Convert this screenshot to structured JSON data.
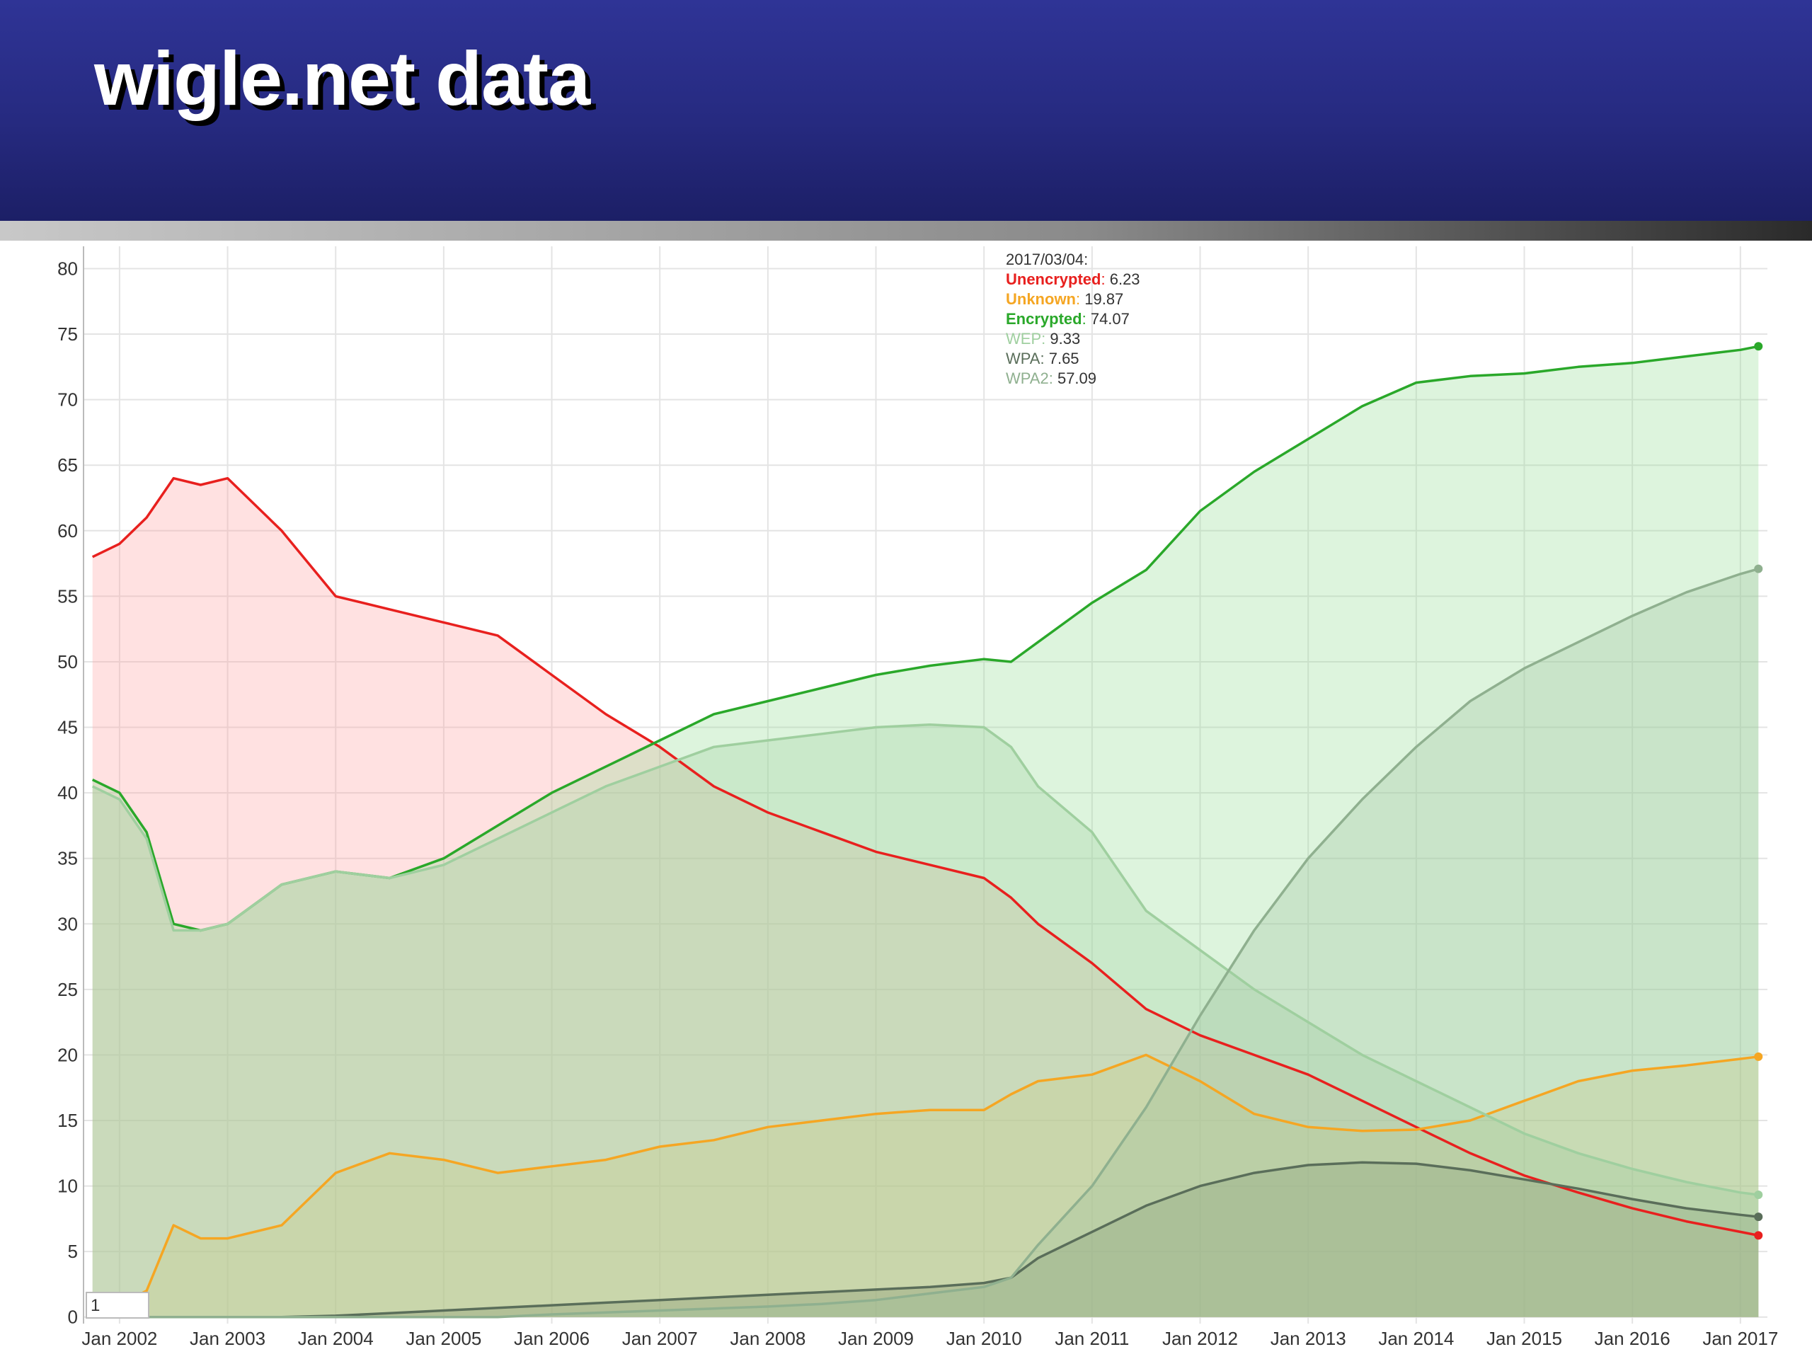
{
  "title": "wigle.net data",
  "range_input": "1",
  "chart_data": {
    "type": "line",
    "tooltip_date": "2017/03/04:",
    "x": [
      "2001-10",
      "2002-01",
      "2002-04",
      "2002-07",
      "2002-10",
      "2003-01",
      "2003-07",
      "2004-01",
      "2004-07",
      "2005-01",
      "2005-07",
      "2006-01",
      "2006-07",
      "2007-01",
      "2007-07",
      "2008-01",
      "2008-07",
      "2009-01",
      "2009-07",
      "2010-01",
      "2010-04",
      "2010-07",
      "2011-01",
      "2011-07",
      "2012-01",
      "2012-07",
      "2013-01",
      "2013-07",
      "2014-01",
      "2014-07",
      "2015-01",
      "2015-07",
      "2016-01",
      "2016-07",
      "2017-01",
      "2017-03"
    ],
    "xlim": [
      "2001-09",
      "2017-04"
    ],
    "xticks": [
      {
        "value": "2002-01",
        "label": "Jan 2002"
      },
      {
        "value": "2003-01",
        "label": "Jan 2003"
      },
      {
        "value": "2004-01",
        "label": "Jan 2004"
      },
      {
        "value": "2005-01",
        "label": "Jan 2005"
      },
      {
        "value": "2006-01",
        "label": "Jan 2006"
      },
      {
        "value": "2007-01",
        "label": "Jan 2007"
      },
      {
        "value": "2008-01",
        "label": "Jan 2008"
      },
      {
        "value": "2009-01",
        "label": "Jan 2009"
      },
      {
        "value": "2010-01",
        "label": "Jan 2010"
      },
      {
        "value": "2011-01",
        "label": "Jan 2011"
      },
      {
        "value": "2012-01",
        "label": "Jan 2012"
      },
      {
        "value": "2013-01",
        "label": "Jan 2013"
      },
      {
        "value": "2014-01",
        "label": "Jan 2014"
      },
      {
        "value": "2015-01",
        "label": "Jan 2015"
      },
      {
        "value": "2016-01",
        "label": "Jan 2016"
      },
      {
        "value": "2017-01",
        "label": "Jan 2017"
      }
    ],
    "ylim": [
      -0.5,
      81.7
    ],
    "yticks": [
      0,
      5,
      10,
      15,
      20,
      25,
      30,
      35,
      40,
      45,
      50,
      55,
      60,
      65,
      70,
      75,
      80
    ],
    "grid": true,
    "area": true,
    "series": [
      {
        "name": "Unencrypted",
        "color": "#e8201e",
        "fill": "#ff9a9a",
        "values": [
          58,
          59,
          61,
          64,
          63.5,
          64,
          60,
          55,
          54,
          53,
          52,
          49,
          46,
          43.5,
          40.5,
          38.5,
          37,
          35.5,
          34.5,
          33.5,
          32,
          30,
          27,
          23.5,
          21.5,
          20,
          18.5,
          16.5,
          14.5,
          12.5,
          10.8,
          9.5,
          8.3,
          7.3,
          6.5,
          6.23
        ]
      },
      {
        "name": "Unknown",
        "color": "#f5a623",
        "fill": "#f5c070",
        "values": [
          0.5,
          1,
          2,
          7,
          6,
          6,
          7,
          11,
          12.5,
          12,
          11,
          11.5,
          12,
          13,
          13.5,
          14.5,
          15,
          15.5,
          15.8,
          15.8,
          17,
          18,
          18.5,
          20,
          18,
          15.5,
          14.5,
          14.2,
          14.3,
          15,
          16.5,
          18,
          18.8,
          19.2,
          19.7,
          19.87
        ]
      },
      {
        "name": "Encrypted",
        "color": "#2aa82a",
        "fill": "#8fdc8f",
        "values": [
          41,
          40,
          37,
          30,
          29.5,
          30,
          33,
          34,
          33.5,
          35,
          37.5,
          40,
          42,
          44,
          46,
          47,
          48,
          49,
          49.7,
          50.2,
          50,
          51.5,
          54.5,
          57,
          61.5,
          64.5,
          67,
          69.5,
          71.3,
          71.8,
          72,
          72.5,
          72.8,
          73.3,
          73.8,
          74.07
        ]
      },
      {
        "name": "WEP",
        "color": "#9fcf9f",
        "fill": "#9fcf9f",
        "values": [
          40.5,
          39.5,
          36.5,
          29.5,
          29.5,
          30,
          33,
          34,
          33.5,
          34.5,
          36.5,
          38.5,
          40.5,
          42,
          43.5,
          44,
          44.5,
          45,
          45.2,
          45,
          43.5,
          40.5,
          37,
          31,
          28,
          25,
          22.5,
          20,
          18,
          16,
          14,
          12.5,
          11.3,
          10.3,
          9.5,
          9.33
        ]
      },
      {
        "name": "WPA",
        "color": "#5a6e5a",
        "fill": "#7d8f6a",
        "values": [
          0,
          0,
          0,
          0,
          0,
          0,
          0,
          0.1,
          0.3,
          0.5,
          0.7,
          0.9,
          1.1,
          1.3,
          1.5,
          1.7,
          1.9,
          2.1,
          2.3,
          2.6,
          3,
          4.5,
          6.5,
          8.5,
          10,
          11,
          11.6,
          11.8,
          11.7,
          11.2,
          10.5,
          9.8,
          9,
          8.3,
          7.8,
          7.65
        ]
      },
      {
        "name": "WPA2",
        "color": "#8fb08f",
        "fill": "#9cc09c",
        "values": [
          0,
          0,
          0,
          0,
          0,
          0,
          0,
          0,
          0,
          0,
          0,
          0.2,
          0.35,
          0.5,
          0.65,
          0.8,
          1,
          1.3,
          1.8,
          2.3,
          3,
          5.5,
          10,
          16,
          23,
          29.5,
          35,
          39.5,
          43.5,
          47,
          49.5,
          51.5,
          53.5,
          55.3,
          56.7,
          57.09
        ]
      }
    ]
  }
}
